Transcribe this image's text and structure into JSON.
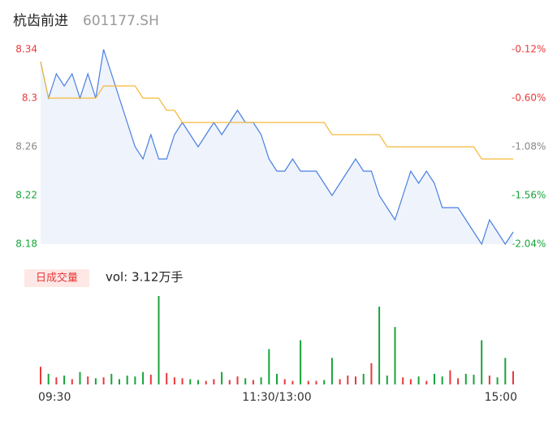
{
  "chart_data": [
    {
      "type": "line",
      "title": "杭齿前进",
      "subtitle": "601177.SH",
      "xlim": [
        0,
        240
      ],
      "x": [
        0,
        4,
        8,
        12,
        16,
        20,
        24,
        28,
        32,
        36,
        40,
        44,
        48,
        52,
        56,
        60,
        64,
        68,
        72,
        76,
        80,
        84,
        88,
        92,
        96,
        100,
        104,
        108,
        112,
        116,
        120,
        124,
        128,
        132,
        136,
        140,
        144,
        148,
        152,
        156,
        160,
        164,
        168,
        172,
        176,
        180,
        184,
        188,
        192,
        196,
        200,
        204,
        208,
        212,
        216,
        220,
        224,
        228,
        232,
        236,
        240
      ],
      "series": [
        {
          "name": "price",
          "color": "#4a7fe0",
          "values": [
            8.33,
            8.3,
            8.32,
            8.31,
            8.32,
            8.3,
            8.32,
            8.3,
            8.34,
            8.32,
            8.3,
            8.28,
            8.26,
            8.25,
            8.27,
            8.25,
            8.25,
            8.27,
            8.28,
            8.27,
            8.26,
            8.27,
            8.28,
            8.27,
            8.28,
            8.29,
            8.28,
            8.28,
            8.27,
            8.25,
            8.24,
            8.24,
            8.25,
            8.24,
            8.24,
            8.24,
            8.23,
            8.22,
            8.23,
            8.24,
            8.25,
            8.24,
            8.24,
            8.22,
            8.21,
            8.2,
            8.22,
            8.24,
            8.23,
            8.24,
            8.23,
            8.21,
            8.21,
            8.21,
            8.2,
            8.19,
            8.18,
            8.2,
            8.19,
            8.18,
            8.19
          ]
        },
        {
          "name": "average",
          "color": "#f5b93a",
          "values": [
            8.33,
            8.3,
            8.3,
            8.3,
            8.3,
            8.3,
            8.3,
            8.3,
            8.31,
            8.31,
            8.31,
            8.31,
            8.31,
            8.3,
            8.3,
            8.3,
            8.29,
            8.29,
            8.28,
            8.28,
            8.28,
            8.28,
            8.28,
            8.28,
            8.28,
            8.28,
            8.28,
            8.28,
            8.28,
            8.28,
            8.28,
            8.28,
            8.28,
            8.28,
            8.28,
            8.28,
            8.28,
            8.27,
            8.27,
            8.27,
            8.27,
            8.27,
            8.27,
            8.27,
            8.26,
            8.26,
            8.26,
            8.26,
            8.26,
            8.26,
            8.26,
            8.26,
            8.26,
            8.26,
            8.26,
            8.26,
            8.25,
            8.25,
            8.25,
            8.25,
            8.25
          ]
        }
      ],
      "ylim": [
        8.18,
        8.34
      ],
      "yticks": [
        8.34,
        8.3,
        8.26,
        8.22,
        8.18
      ],
      "ytick_colors": [
        "#e8393a",
        "#e8393a",
        "#888888",
        "#18a43a",
        "#18a43a"
      ],
      "y2lim": [
        -2.04,
        -0.12
      ],
      "y2ticks": [
        {
          "value": -0.12,
          "label": "-0.12%"
        },
        {
          "value": -0.6,
          "label": "-0.60%"
        },
        {
          "value": -1.08,
          "label": "-1.08%"
        },
        {
          "value": -1.56,
          "label": "-1.56%"
        },
        {
          "value": -2.04,
          "label": "-2.04%"
        }
      ],
      "fill": "#eef3fc"
    },
    {
      "type": "bar",
      "title": "日成交量",
      "annotation": "vol: 3.12万手",
      "xlim": [
        0,
        240
      ],
      "xticks": [
        {
          "value": 0,
          "label": "09:30"
        },
        {
          "value": 120,
          "label": "11:30/13:00"
        },
        {
          "value": 240,
          "label": "15:00"
        }
      ],
      "ylim": [
        0,
        100
      ],
      "up_color": "#e8393a",
      "down_color": "#18a43a",
      "values": [
        20,
        12,
        8,
        10,
        6,
        14,
        9,
        7,
        8,
        12,
        6,
        10,
        9,
        14,
        11,
        100,
        13,
        8,
        7,
        6,
        5,
        4,
        6,
        14,
        5,
        9,
        7,
        5,
        8,
        40,
        12,
        6,
        4,
        50,
        4,
        4,
        5,
        30,
        6,
        10,
        9,
        12,
        24,
        88,
        10,
        65,
        8,
        6,
        9,
        4,
        12,
        9,
        16,
        7,
        12,
        11,
        50,
        10,
        8,
        30,
        15
      ]
    }
  ]
}
